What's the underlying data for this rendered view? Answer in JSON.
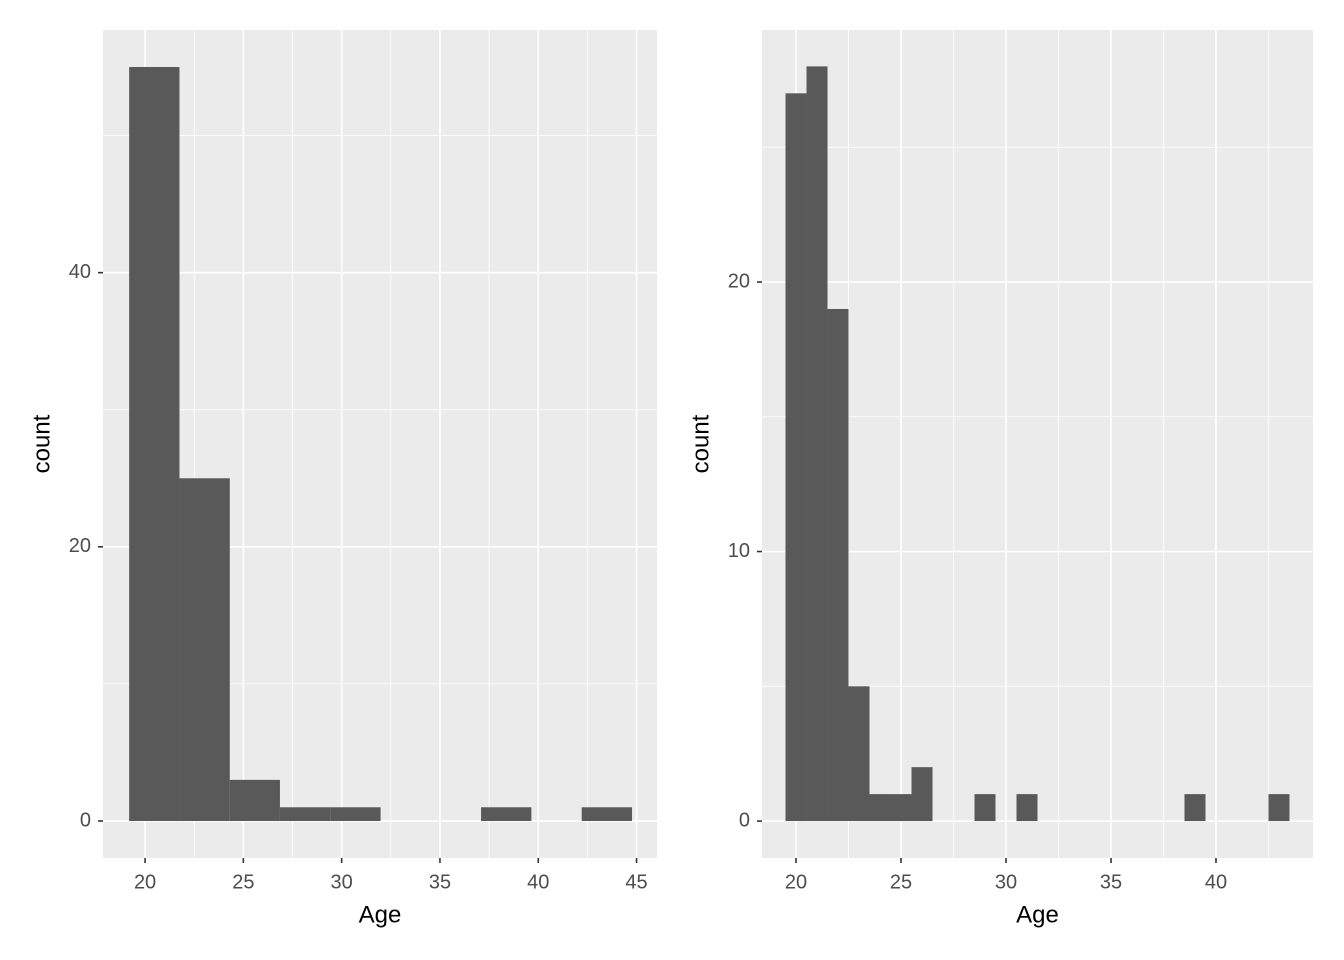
{
  "chart_data": [
    {
      "type": "histogram",
      "x_label": "Age",
      "y_label": "count",
      "color": "#595959",
      "grid": true,
      "bins": [
        19.19,
        21.75,
        24.31,
        26.86,
        29.42,
        31.98,
        34.54,
        37.09,
        39.65,
        42.21,
        44.77
      ],
      "values": [
        55,
        25,
        3,
        1,
        1,
        0,
        0,
        1,
        0,
        1
      ],
      "xlim": [
        17.86,
        46.04
      ],
      "xticks": [
        20,
        25,
        30,
        35,
        40,
        45
      ],
      "ylim": [
        -2.7,
        57.7
      ],
      "yticks": [
        0,
        20,
        40
      ]
    },
    {
      "type": "histogram",
      "x_label": "Age",
      "y_label": "count",
      "color": "#595959",
      "grid": true,
      "bins": [
        19.5,
        20.5,
        21.5,
        22.5,
        23.5,
        24.5,
        25.5,
        26.5,
        27.5,
        28.5,
        29.5,
        30.5,
        31.5,
        32.5,
        33.5,
        34.5,
        35.5,
        36.5,
        37.5,
        38.5,
        39.5,
        40.5,
        41.5,
        42.5,
        43.5
      ],
      "values": [
        27,
        28,
        19,
        5,
        1,
        1,
        2,
        0,
        0,
        1,
        0,
        1,
        0,
        0,
        0,
        0,
        0,
        0,
        0,
        1,
        0,
        0,
        0,
        1
      ],
      "xlim": [
        18.38,
        44.62
      ],
      "xticks": [
        20,
        25,
        30,
        35,
        40
      ],
      "ylim": [
        -1.37,
        29.35
      ],
      "yticks": [
        0,
        10,
        20
      ]
    }
  ]
}
